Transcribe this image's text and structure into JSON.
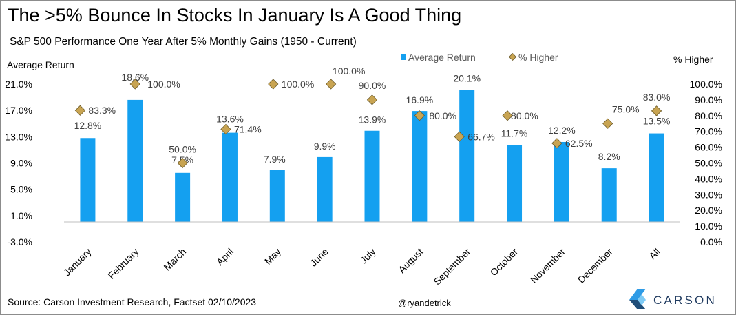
{
  "header": {
    "title": "The >5% Bounce In Stocks In January Is A Good Thing",
    "subtitle": "S&P 500 Performance One Year After 5% Monthly Gains (1950 - Current)"
  },
  "footer": {
    "source": "Source: Carson Investment Research, Factset 02/10/2023",
    "handle": "@ryandetrick"
  },
  "logo": {
    "text": "CARSON",
    "icon": "carson-chevron-logo",
    "colors": [
      "#1f4e79",
      "#2e9be6",
      "#7fcbf5"
    ]
  },
  "chart_data": {
    "type": "bar",
    "categories": [
      "January",
      "February",
      "March",
      "April",
      "May",
      "June",
      "July",
      "August",
      "September",
      "October",
      "November",
      "December",
      "All"
    ],
    "series": [
      {
        "name": "Average Return",
        "kind": "bar",
        "axis": "left",
        "color": "#14a0f0",
        "values": [
          12.8,
          18.6,
          7.5,
          13.6,
          7.9,
          9.9,
          13.9,
          16.9,
          20.1,
          11.7,
          12.2,
          8.2,
          13.5
        ],
        "labels": [
          "12.8%",
          "18.6%",
          "7.5%",
          "13.6%",
          "7.9%",
          "9.9%",
          "13.9%",
          "16.9%",
          "20.1%",
          "11.7%",
          "12.2%",
          "8.2%",
          "13.5%"
        ]
      },
      {
        "name": "% Higher",
        "kind": "marker",
        "marker": "diamond",
        "axis": "right",
        "color": "#c8a452",
        "values": [
          83.3,
          100.0,
          50.0,
          71.4,
          100.0,
          100.0,
          90.0,
          80.0,
          66.7,
          80.0,
          62.5,
          75.0,
          83.0
        ],
        "labels": [
          "83.3%",
          "100.0%",
          "50.0%",
          "71.4%",
          "100.0%",
          "100.0%",
          "90.0%",
          "80.0%",
          "66.7%",
          "80.0%",
          "62.5%",
          "75.0%",
          "83.0%"
        ]
      }
    ],
    "y_left": {
      "label": "Average Return",
      "range": [
        -3.0,
        21.0
      ],
      "ticks": [
        -3.0,
        1.0,
        5.0,
        9.0,
        13.0,
        17.0,
        21.0
      ],
      "tick_labels": [
        "-3.0%",
        "1.0%",
        "5.0%",
        "9.0%",
        "13.0%",
        "17.0%",
        "21.0%"
      ]
    },
    "y_right": {
      "label": "% Higher",
      "range": [
        0.0,
        100.0
      ],
      "ticks": [
        0,
        10,
        20,
        30,
        40,
        50,
        60,
        70,
        80,
        90,
        100
      ],
      "tick_labels": [
        "0.0%",
        "10.0%",
        "20.0%",
        "30.0%",
        "40.0%",
        "50.0%",
        "60.0%",
        "70.0%",
        "80.0%",
        "90.0%",
        "100.0%"
      ]
    },
    "grid": false,
    "legend_position": "top-center"
  }
}
